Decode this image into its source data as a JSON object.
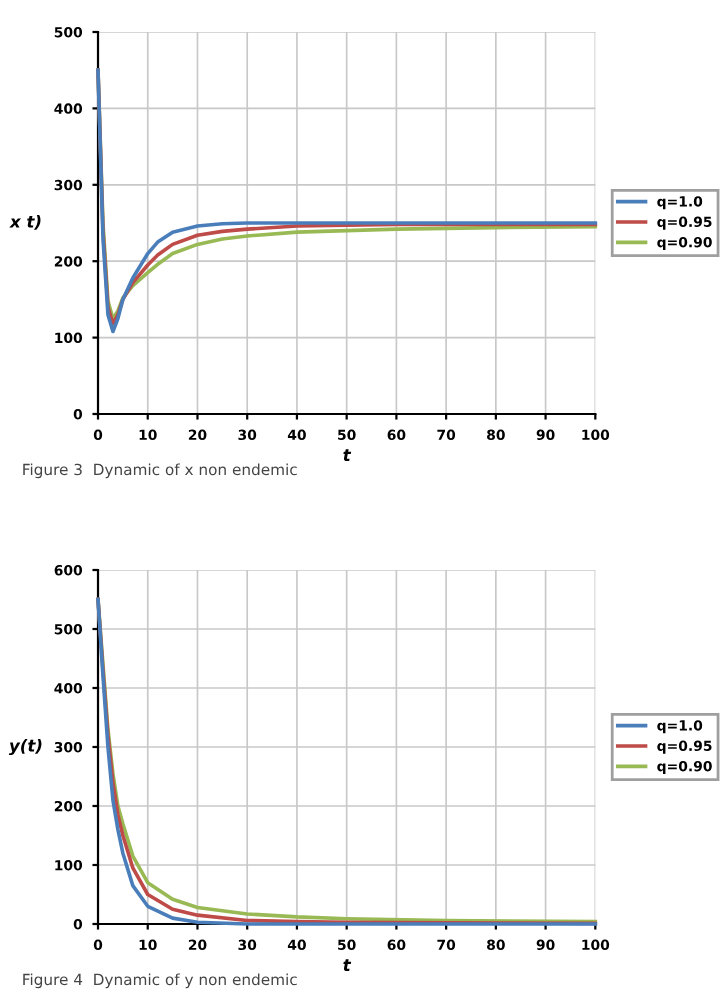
{
  "chart_data": [
    {
      "type": "line",
      "xlabel": "t",
      "ylabel": "x t)",
      "xlim": [
        0,
        100
      ],
      "ylim": [
        0,
        500
      ],
      "xticks": [
        0,
        10,
        20,
        30,
        40,
        50,
        60,
        70,
        80,
        90,
        100
      ],
      "yticks": [
        0,
        100,
        200,
        300,
        400,
        500
      ],
      "grid": true,
      "legend": "right",
      "line_style": "solid",
      "annotations": [
        "Figure 3  Dynamic of x non endemic"
      ],
      "x": [
        0,
        1,
        2,
        3,
        4,
        5,
        7,
        10,
        12,
        15,
        20,
        25,
        30,
        40,
        50,
        60,
        80,
        100
      ],
      "series": [
        {
          "name": "q=1.0",
          "color": "#4a7ebb",
          "values": [
            450,
            230,
            130,
            108,
            125,
            150,
            178,
            210,
            225,
            238,
            246,
            249,
            250,
            250,
            250,
            250,
            250,
            250
          ]
        },
        {
          "name": "q=0.95",
          "color": "#be4b48",
          "values": [
            450,
            240,
            140,
            118,
            130,
            150,
            172,
            195,
            208,
            222,
            234,
            239,
            242,
            246,
            247,
            248,
            248,
            248
          ]
        },
        {
          "name": "q=0.90",
          "color": "#98b954",
          "values": [
            450,
            250,
            148,
            125,
            135,
            152,
            168,
            185,
            196,
            210,
            222,
            229,
            233,
            238,
            240,
            242,
            244,
            245
          ]
        }
      ]
    },
    {
      "type": "line",
      "xlabel": "t",
      "ylabel": "y(t)",
      "xlim": [
        0,
        100
      ],
      "ylim": [
        0,
        600
      ],
      "xticks": [
        0,
        10,
        20,
        30,
        40,
        50,
        60,
        70,
        80,
        90,
        100
      ],
      "yticks": [
        0,
        100,
        200,
        300,
        400,
        500,
        600
      ],
      "grid": true,
      "legend": "right",
      "line_style": "solid",
      "annotations": [
        "Figure 4  Dynamic of y non endemic"
      ],
      "x": [
        0,
        1,
        2,
        3,
        4,
        5,
        7,
        10,
        15,
        20,
        30,
        40,
        50,
        70,
        100
      ],
      "series": [
        {
          "name": "q=1.0",
          "color": "#4a7ebb",
          "values": [
            550,
            420,
            300,
            210,
            160,
            120,
            65,
            30,
            10,
            3,
            0,
            0,
            0,
            0,
            0
          ]
        },
        {
          "name": "q=0.95",
          "color": "#be4b48",
          "values": [
            550,
            430,
            320,
            240,
            185,
            150,
            95,
            50,
            25,
            15,
            6,
            4,
            3,
            2,
            1
          ]
        },
        {
          "name": "q=0.90",
          "color": "#98b954",
          "values": [
            550,
            440,
            330,
            255,
            200,
            170,
            115,
            70,
            42,
            28,
            17,
            12,
            9,
            6,
            4
          ]
        }
      ]
    }
  ]
}
